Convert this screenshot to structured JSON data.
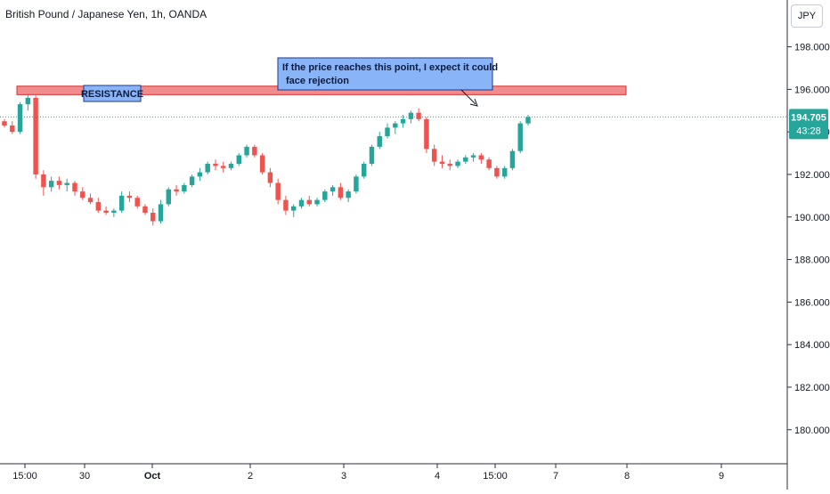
{
  "header": {
    "title": "British Pound / Japanese Yen, 1h, OANDA",
    "currency": "JPY"
  },
  "price_label": {
    "price": "194.705",
    "countdown": "43:28"
  },
  "annotations": {
    "resistance_label": "RESISTANCE",
    "callout_line1": "If the price reaches this point, I expect it could",
    "callout_line2": "face rejection"
  },
  "colors": {
    "up": "#26a69a",
    "down": "#ef5350",
    "resistance_fill": "#f28b8b",
    "resistance_border": "#d32f2f",
    "callout_fill": "#8ab4f8",
    "label_fill": "#8ab4f8",
    "price_line": "#26a69a"
  },
  "chart_data": {
    "type": "candlestick",
    "y_ticks": [
      "198.000",
      "196.000",
      "194.000",
      "192.000",
      "190.000",
      "188.000",
      "186.000",
      "184.000",
      "182.000",
      "180.000"
    ],
    "y_tick_values": [
      198,
      196,
      194,
      192,
      190,
      188,
      186,
      184,
      182,
      180
    ],
    "x_ticks": [
      "15:00",
      "30",
      "Oct",
      "2",
      "3",
      "4",
      "15:00",
      "7",
      "8",
      "9"
    ],
    "ylim": [
      178.4,
      200.2
    ],
    "resistance": [
      195.75,
      196.15
    ],
    "last_price": 194.705,
    "candles": [
      [
        194.5,
        194.6,
        194.2,
        194.3
      ],
      [
        194.3,
        194.5,
        193.9,
        194.0
      ],
      [
        194.0,
        195.4,
        193.9,
        195.3
      ],
      [
        195.3,
        195.8,
        195.0,
        195.6
      ],
      [
        195.6,
        195.7,
        191.8,
        192.0
      ],
      [
        192.0,
        192.2,
        191.0,
        191.4
      ],
      [
        191.4,
        191.9,
        191.2,
        191.7
      ],
      [
        191.7,
        191.9,
        191.3,
        191.5
      ],
      [
        191.5,
        191.8,
        191.2,
        191.6
      ],
      [
        191.6,
        191.7,
        191.0,
        191.2
      ],
      [
        191.2,
        191.4,
        190.8,
        190.9
      ],
      [
        190.9,
        191.1,
        190.6,
        190.7
      ],
      [
        190.7,
        190.9,
        190.2,
        190.3
      ],
      [
        190.3,
        190.5,
        190.1,
        190.2
      ],
      [
        190.2,
        190.4,
        190.0,
        190.3
      ],
      [
        190.3,
        191.2,
        190.2,
        191.0
      ],
      [
        191.0,
        191.2,
        190.7,
        190.9
      ],
      [
        190.9,
        191.0,
        190.4,
        190.5
      ],
      [
        190.5,
        190.6,
        190.1,
        190.2
      ],
      [
        190.2,
        190.4,
        189.6,
        189.8
      ],
      [
        189.8,
        190.8,
        189.7,
        190.6
      ],
      [
        190.6,
        191.4,
        190.5,
        191.3
      ],
      [
        191.3,
        191.5,
        191.0,
        191.2
      ],
      [
        191.2,
        191.6,
        191.1,
        191.5
      ],
      [
        191.5,
        192.0,
        191.4,
        191.9
      ],
      [
        191.9,
        192.3,
        191.7,
        192.1
      ],
      [
        192.1,
        192.6,
        192.0,
        192.5
      ],
      [
        192.5,
        192.7,
        192.2,
        192.4
      ],
      [
        192.4,
        192.6,
        192.1,
        192.3
      ],
      [
        192.3,
        192.6,
        192.2,
        192.5
      ],
      [
        192.5,
        193.0,
        192.4,
        192.9
      ],
      [
        192.9,
        193.4,
        192.8,
        193.3
      ],
      [
        193.3,
        193.4,
        192.8,
        192.9
      ],
      [
        192.9,
        193.0,
        192.0,
        192.1
      ],
      [
        192.1,
        192.3,
        191.4,
        191.6
      ],
      [
        191.6,
        191.8,
        190.6,
        190.8
      ],
      [
        190.8,
        191.0,
        190.1,
        190.3
      ],
      [
        190.3,
        190.6,
        190.0,
        190.5
      ],
      [
        190.5,
        190.9,
        190.4,
        190.8
      ],
      [
        190.8,
        191.0,
        190.5,
        190.6
      ],
      [
        190.6,
        190.9,
        190.5,
        190.8
      ],
      [
        190.8,
        191.3,
        190.7,
        191.2
      ],
      [
        191.2,
        191.5,
        191.0,
        191.4
      ],
      [
        191.4,
        191.6,
        190.8,
        190.9
      ],
      [
        190.9,
        191.3,
        190.7,
        191.2
      ],
      [
        191.2,
        192.0,
        191.1,
        191.9
      ],
      [
        191.9,
        192.6,
        191.8,
        192.5
      ],
      [
        192.5,
        193.4,
        192.4,
        193.3
      ],
      [
        193.3,
        194.0,
        193.2,
        193.8
      ],
      [
        193.8,
        194.4,
        193.7,
        194.2
      ],
      [
        194.2,
        194.5,
        193.9,
        194.4
      ],
      [
        194.4,
        194.8,
        194.2,
        194.6
      ],
      [
        194.6,
        195.0,
        194.4,
        194.9
      ],
      [
        194.9,
        195.1,
        194.5,
        194.6
      ],
      [
        194.6,
        194.7,
        193.0,
        193.2
      ],
      [
        193.2,
        193.4,
        192.4,
        192.6
      ],
      [
        192.6,
        192.9,
        192.3,
        192.5
      ],
      [
        192.5,
        192.7,
        192.2,
        192.4
      ],
      [
        192.4,
        192.7,
        192.3,
        192.6
      ],
      [
        192.6,
        192.9,
        192.5,
        192.8
      ],
      [
        192.8,
        193.0,
        192.6,
        192.9
      ],
      [
        192.9,
        193.0,
        192.5,
        192.7
      ],
      [
        192.7,
        192.8,
        192.2,
        192.3
      ],
      [
        192.3,
        192.4,
        191.8,
        191.9
      ],
      [
        191.9,
        192.4,
        191.8,
        192.3
      ],
      [
        192.3,
        193.2,
        192.2,
        193.1
      ],
      [
        193.1,
        194.5,
        193.0,
        194.4
      ],
      [
        194.4,
        194.8,
        194.3,
        194.7
      ]
    ]
  }
}
